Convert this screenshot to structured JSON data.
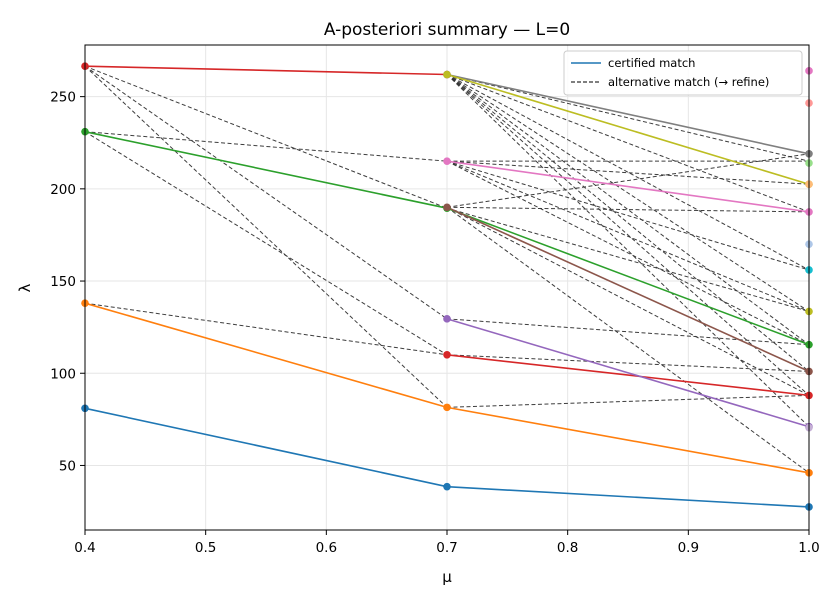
{
  "chart_data": {
    "type": "line",
    "title": "A-posteriori summary — L=0",
    "xlabel": "μ",
    "ylabel": "λ",
    "xlim": [
      0.4,
      1.0
    ],
    "ylim": [
      15,
      278
    ],
    "grid": true,
    "x_ticks": [
      0.4,
      0.5,
      0.6,
      0.7,
      0.8,
      0.9,
      1.0
    ],
    "x_tick_labels": [
      "0.4",
      "0.5",
      "0.6",
      "0.7",
      "0.8",
      "0.9",
      "1.0"
    ],
    "y_ticks": [
      50,
      100,
      150,
      200,
      250
    ],
    "y_tick_labels": [
      "50",
      "100",
      "150",
      "200",
      "250"
    ],
    "legend": {
      "position": "top-right",
      "entries": [
        {
          "label": "certified match",
          "style": "solid",
          "color": "#1f77b4"
        },
        {
          "label": "alternative match (→ refine)",
          "style": "dashed",
          "color": "#333333"
        }
      ]
    },
    "certified_paths": [
      {
        "color": "#1f77b4",
        "points": [
          [
            0.4,
            81
          ],
          [
            0.7,
            38.5
          ],
          [
            1.0,
            27.5
          ]
        ]
      },
      {
        "color": "#ff7f0e",
        "points": [
          [
            0.4,
            138
          ],
          [
            0.7,
            81.5
          ],
          [
            1.0,
            46
          ]
        ]
      },
      {
        "color": "#2ca02c",
        "points": [
          [
            0.4,
            231
          ],
          [
            0.7,
            189.5
          ],
          [
            1.0,
            115.5
          ]
        ]
      },
      {
        "color": "#d62728",
        "points": [
          [
            0.4,
            266.5
          ],
          [
            0.7,
            262
          ]
        ]
      },
      {
        "color": "#d62728",
        "points": [
          [
            0.7,
            110
          ],
          [
            1.0,
            88
          ]
        ]
      },
      {
        "color": "#9467bd",
        "points": [
          [
            0.7,
            129.5
          ],
          [
            1.0,
            71
          ]
        ]
      },
      {
        "color": "#8c564b",
        "points": [
          [
            0.7,
            190
          ],
          [
            1.0,
            101
          ]
        ]
      },
      {
        "color": "#e377c2",
        "points": [
          [
            0.7,
            215
          ],
          [
            1.0,
            187.5
          ]
        ]
      },
      {
        "color": "#7f7f7f",
        "points": [
          [
            0.7,
            262
          ],
          [
            1.0,
            219
          ]
        ]
      },
      {
        "color": "#bcbd22",
        "points": [
          [
            0.7,
            262
          ],
          [
            1.0,
            202.5
          ]
        ]
      }
    ],
    "alternative_edges": [
      [
        [
          0.4,
          266.5
        ],
        [
          0.7,
          189.5
        ]
      ],
      [
        [
          0.4,
          266.5
        ],
        [
          0.7,
          81.5
        ]
      ],
      [
        [
          0.4,
          266.5
        ],
        [
          0.7,
          129.5
        ]
      ],
      [
        [
          0.4,
          231
        ],
        [
          0.7,
          215
        ]
      ],
      [
        [
          0.4,
          231
        ],
        [
          0.7,
          110
        ]
      ],
      [
        [
          0.4,
          138
        ],
        [
          0.7,
          110
        ]
      ],
      [
        [
          0.7,
          262
        ],
        [
          1.0,
          215
        ]
      ],
      [
        [
          0.7,
          262
        ],
        [
          1.0,
          187.5
        ]
      ],
      [
        [
          0.7,
          262
        ],
        [
          1.0,
          156
        ]
      ],
      [
        [
          0.7,
          262
        ],
        [
          1.0,
          133.5
        ]
      ],
      [
        [
          0.7,
          262
        ],
        [
          1.0,
          115.5
        ]
      ],
      [
        [
          0.7,
          262
        ],
        [
          1.0,
          101
        ]
      ],
      [
        [
          0.7,
          262
        ],
        [
          1.0,
          88
        ]
      ],
      [
        [
          0.7,
          262
        ],
        [
          1.0,
          71
        ]
      ],
      [
        [
          0.7,
          215
        ],
        [
          1.0,
          215
        ]
      ],
      [
        [
          0.7,
          215
        ],
        [
          1.0,
          202.5
        ]
      ],
      [
        [
          0.7,
          215
        ],
        [
          1.0,
          156
        ]
      ],
      [
        [
          0.7,
          215
        ],
        [
          1.0,
          133.5
        ]
      ],
      [
        [
          0.7,
          215
        ],
        [
          1.0,
          115.5
        ]
      ],
      [
        [
          0.7,
          190
        ],
        [
          1.0,
          219
        ]
      ],
      [
        [
          0.7,
          190
        ],
        [
          1.0,
          187.5
        ]
      ],
      [
        [
          0.7,
          190
        ],
        [
          1.0,
          88
        ]
      ],
      [
        [
          0.7,
          190
        ],
        [
          1.0,
          46
        ]
      ],
      [
        [
          0.7,
          189.5
        ],
        [
          1.0,
          133.5
        ]
      ],
      [
        [
          0.7,
          129.5
        ],
        [
          1.0,
          115.5
        ]
      ],
      [
        [
          0.7,
          110
        ],
        [
          1.0,
          101
        ]
      ],
      [
        [
          0.7,
          81.5
        ],
        [
          1.0,
          88
        ]
      ]
    ],
    "end_markers": [
      {
        "color": "#e377c2",
        "x": 1.0,
        "y": 264
      },
      {
        "color": "#ff9896",
        "x": 1.0,
        "y": 246.5
      },
      {
        "color": "#98df8a",
        "x": 1.0,
        "y": 214
      },
      {
        "color": "#aec7e8",
        "x": 1.0,
        "y": 170
      },
      {
        "color": "#17becf",
        "x": 1.0,
        "y": 156
      },
      {
        "color": "#bcbd22",
        "x": 1.0,
        "y": 133.5
      },
      {
        "color": "#ffbb78",
        "x": 1.0,
        "y": 202.5
      },
      {
        "color": "#c5b0d5",
        "x": 1.0,
        "y": 70.5
      }
    ]
  }
}
